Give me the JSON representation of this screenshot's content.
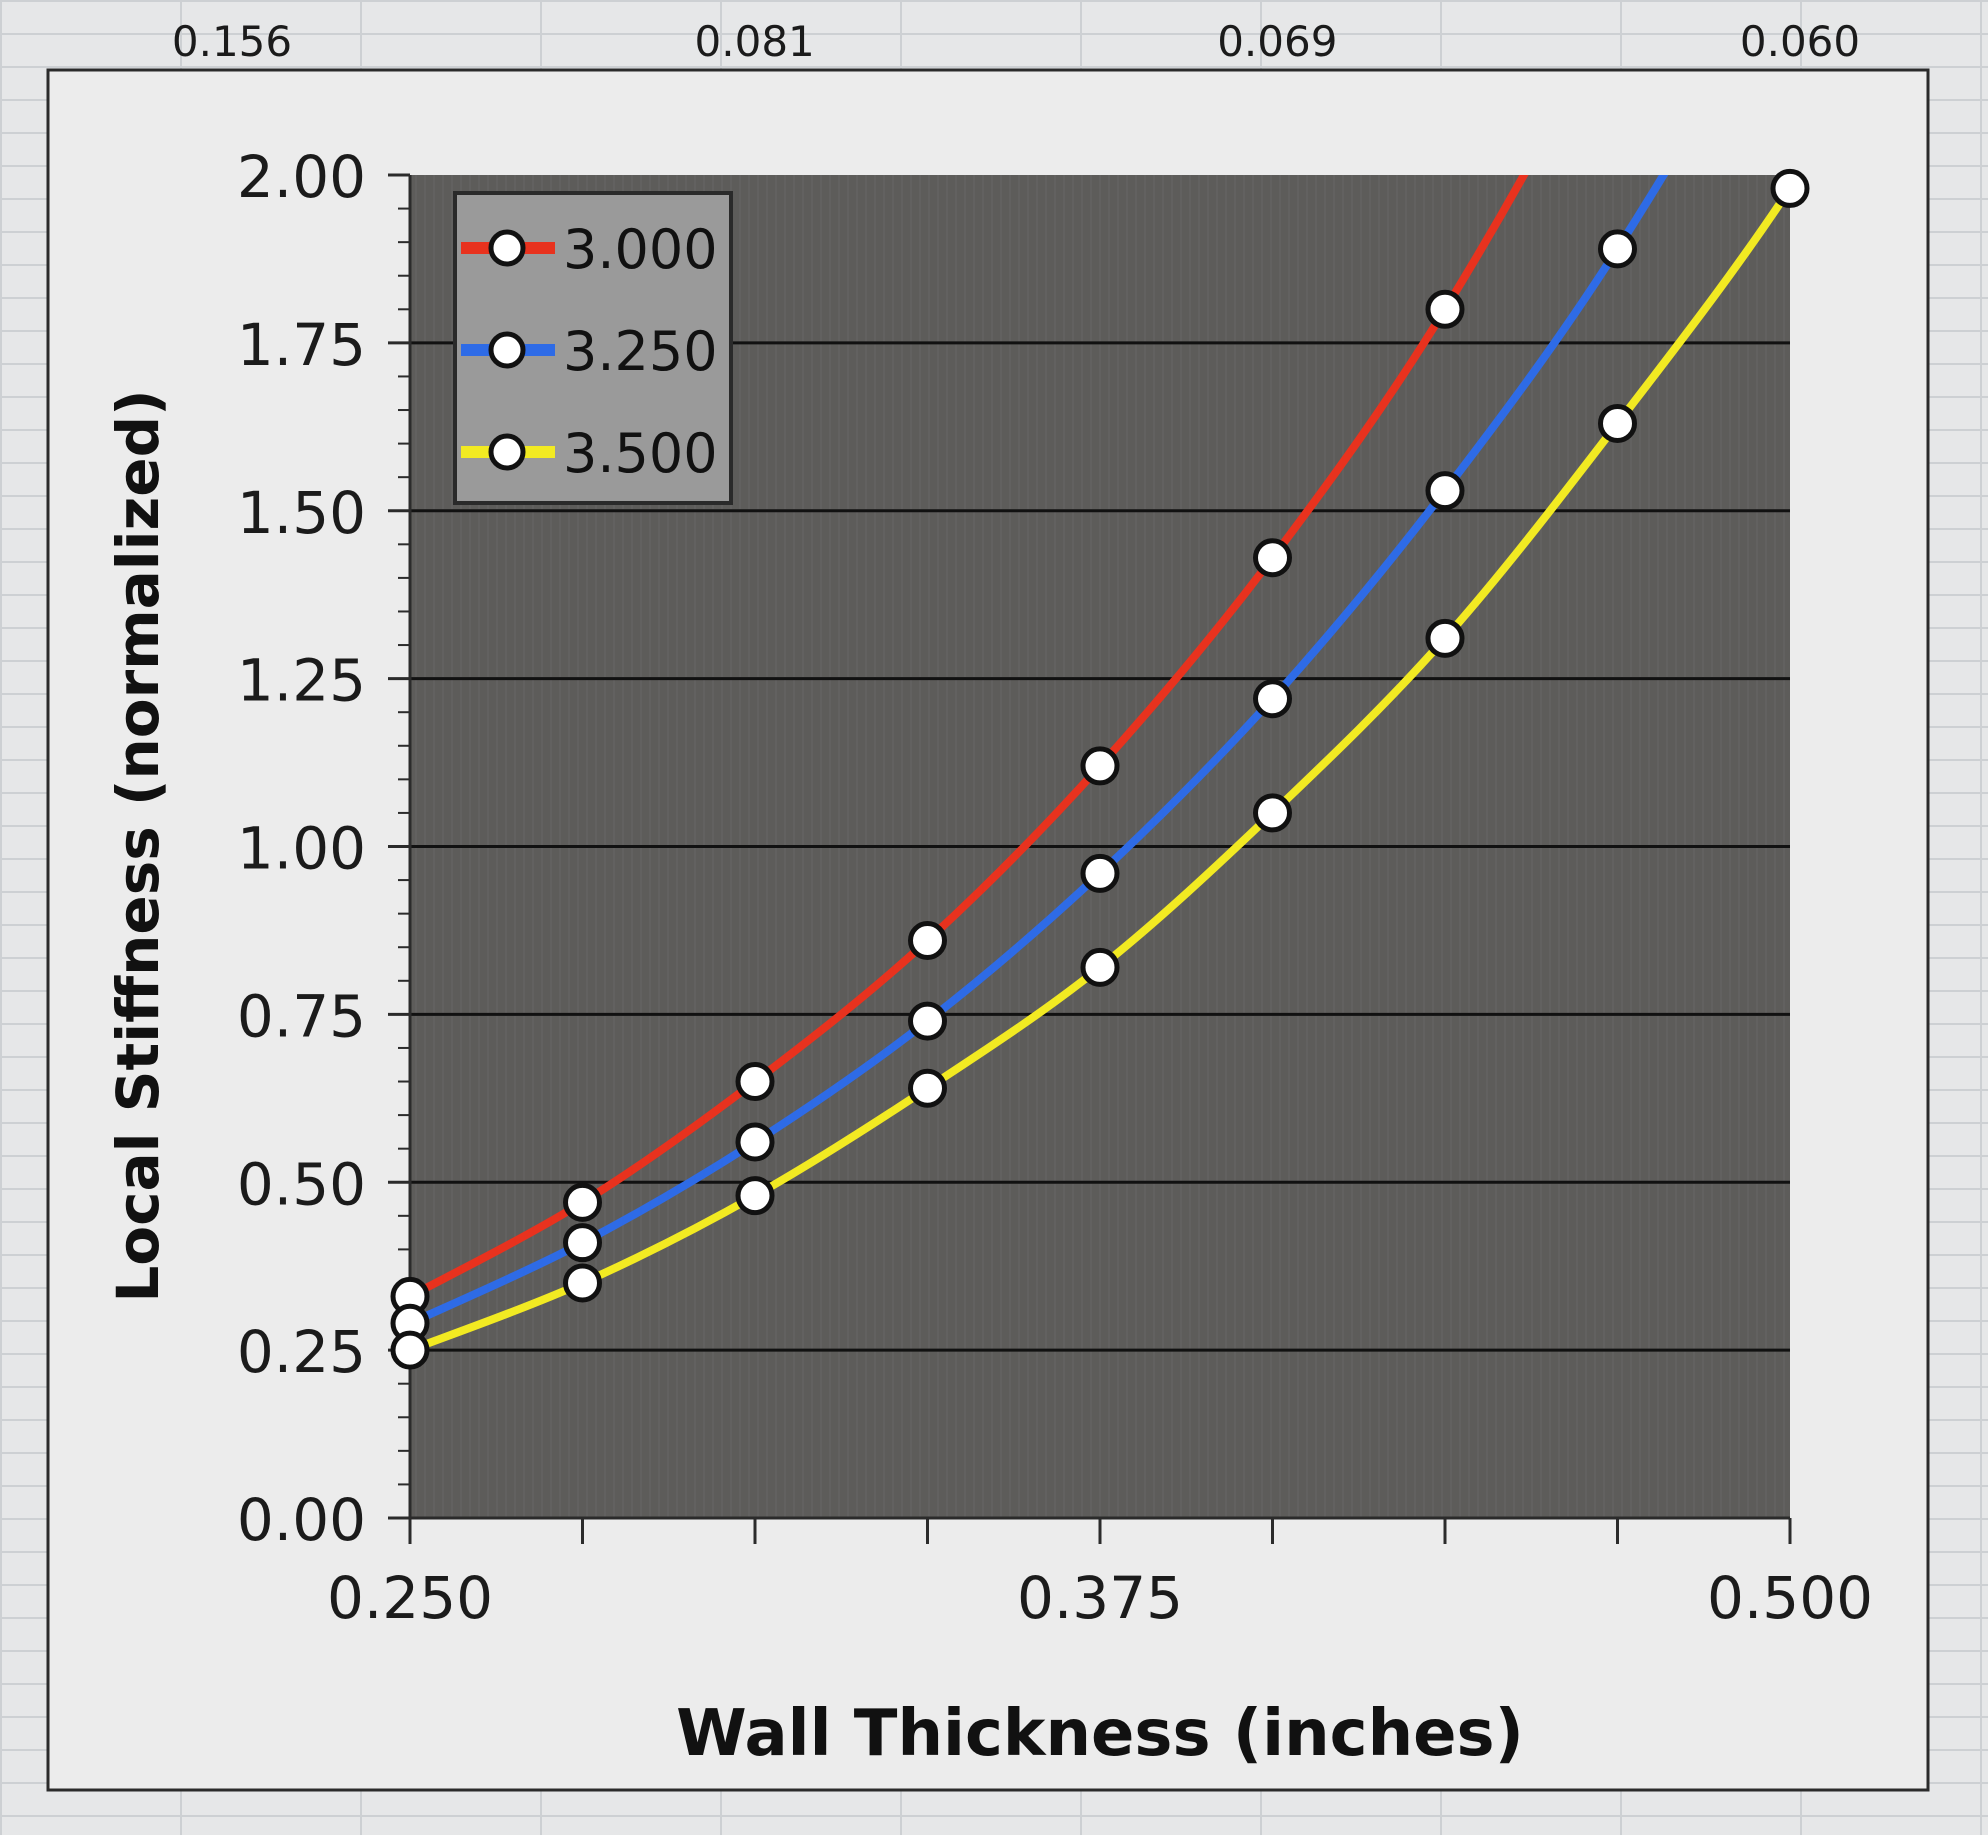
{
  "chart_data": {
    "type": "line",
    "xlabel": "Wall Thickness (inches)",
    "ylabel": "Local Stiffness (normalized)",
    "xlim": [
      0.25,
      0.5
    ],
    "ylim": [
      0,
      2
    ],
    "x_ticks": [
      "0.250",
      "0.375",
      "0.500"
    ],
    "y_ticks": [
      "0.00",
      "0.25",
      "0.50",
      "0.75",
      "1.00",
      "1.25",
      "1.50",
      "1.75",
      "2.00"
    ],
    "secondary_x_ticks": [
      "0.156",
      "0.081",
      "0.069",
      "0.060"
    ],
    "grid": true,
    "legend_position": "top-left",
    "series": [
      {
        "name": "3.000",
        "color": "#e8321e",
        "x": [
          0.25,
          0.28125,
          0.3125,
          0.34375,
          0.375,
          0.40625,
          0.4375
        ],
        "values": [
          0.33,
          0.47,
          0.65,
          0.86,
          1.12,
          1.43,
          1.8
        ]
      },
      {
        "name": "3.250",
        "color": "#2e6be6",
        "x": [
          0.25,
          0.28125,
          0.3125,
          0.34375,
          0.375,
          0.40625,
          0.4375,
          0.46875
        ],
        "values": [
          0.29,
          0.41,
          0.56,
          0.74,
          0.96,
          1.22,
          1.53,
          1.89
        ]
      },
      {
        "name": "3.500",
        "color": "#f2ea22",
        "x": [
          0.25,
          0.28125,
          0.3125,
          0.34375,
          0.375,
          0.40625,
          0.4375,
          0.46875,
          0.5
        ],
        "values": [
          0.25,
          0.35,
          0.48,
          0.64,
          0.82,
          1.05,
          1.31,
          1.63,
          1.98
        ]
      }
    ]
  }
}
